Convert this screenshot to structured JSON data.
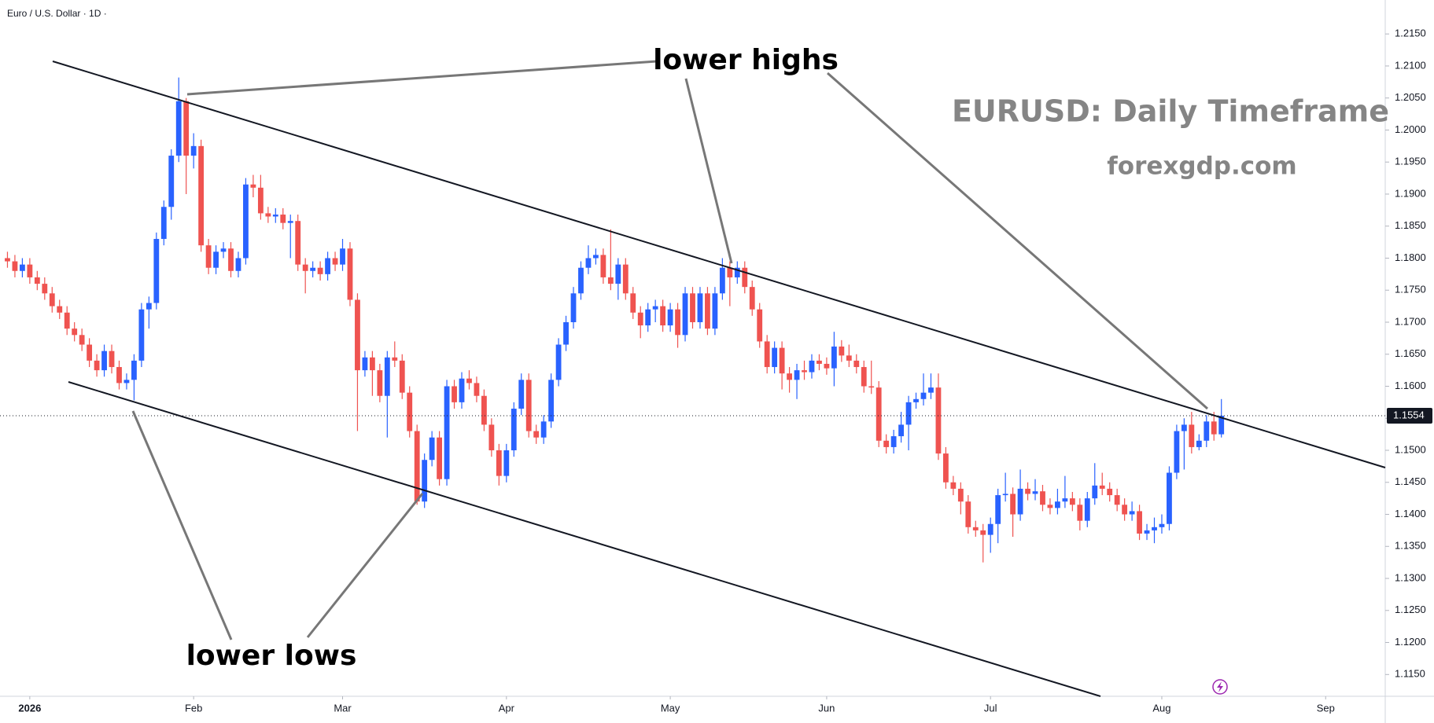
{
  "chart_data": {
    "type": "candlestick",
    "title": "Euro / U.S. Dollar · 1D ·",
    "annotations": {
      "highs": "lower highs",
      "lows": "lower lows",
      "heading": "EURUSD: Daily Timeframe",
      "site": "forexgdp.com"
    },
    "up_color": "#2962ff",
    "down_color": "#ef5350",
    "open": [
      1.18,
      1.1795,
      1.178,
      1.179,
      1.177,
      1.176,
      1.1745,
      1.1725,
      1.1715,
      1.169,
      1.168,
      1.1665,
      1.164,
      1.1625,
      1.1655,
      1.163,
      1.1605,
      1.161,
      1.164,
      1.172,
      1.173,
      1.183,
      1.188,
      1.196,
      1.2045,
      1.196,
      1.1975,
      1.182,
      1.1785,
      1.181,
      1.1815,
      1.178,
      1.18,
      1.1915,
      1.191,
      1.187,
      1.1865,
      1.1868,
      1.1855,
      1.1858,
      1.179,
      1.178,
      1.1785,
      1.1775,
      1.18,
      1.179,
      1.1815,
      1.1735,
      1.1625,
      1.1645,
      1.1625,
      1.1585,
      1.1645,
      1.164,
      1.159,
      1.153,
      1.142,
      1.1485,
      1.152,
      1.1455,
      1.16,
      1.1575,
      1.1612,
      1.1605,
      1.1585,
      1.154,
      1.15,
      1.146,
      1.15,
      1.1565,
      1.161,
      1.153,
      1.152,
      1.1545,
      1.161,
      1.1665,
      1.17,
      1.1745,
      1.1785,
      1.18,
      1.1805,
      1.177,
      1.176,
      1.179,
      1.1745,
      1.1715,
      1.1695,
      1.172,
      1.1725,
      1.1695,
      1.172,
      1.168,
      1.1745,
      1.17,
      1.1745,
      1.169,
      1.1745,
      1.1785,
      1.177,
      1.1785,
      1.1755,
      1.172,
      1.167,
      1.163,
      1.166,
      1.162,
      1.161,
      1.1625,
      1.1622,
      1.164,
      1.1635,
      1.1628,
      1.1662,
      1.1648,
      1.164,
      1.163,
      1.16,
      1.1598,
      1.1515,
      1.1505,
      1.1522,
      1.154,
      1.1575,
      1.158,
      1.159,
      1.1598,
      1.1495,
      1.145,
      1.144,
      1.142,
      1.138,
      1.1375,
      1.1368,
      1.1385,
      1.143,
      1.1432,
      1.14,
      1.144,
      1.1432,
      1.1436,
      1.1415,
      1.141,
      1.142,
      1.1425,
      1.1415,
      1.139,
      1.1425,
      1.1445,
      1.144,
      1.143,
      1.1415,
      1.14,
      1.1405,
      1.137,
      1.1375,
      1.138,
      1.1385,
      1.1465,
      1.153,
      1.154,
      1.1505,
      1.1515,
      1.1545,
      1.1525
    ],
    "high": [
      1.181,
      1.1805,
      1.18,
      1.18,
      1.178,
      1.177,
      1.1755,
      1.1735,
      1.1725,
      1.17,
      1.169,
      1.1675,
      1.165,
      1.1665,
      1.1665,
      1.164,
      1.162,
      1.165,
      1.173,
      1.174,
      1.184,
      1.189,
      1.197,
      1.2082,
      1.205,
      1.1995,
      1.1985,
      1.183,
      1.182,
      1.1825,
      1.1825,
      1.181,
      1.1925,
      1.193,
      1.193,
      1.188,
      1.1878,
      1.1878,
      1.1868,
      1.1868,
      1.18,
      1.1795,
      1.1795,
      1.181,
      1.181,
      1.183,
      1.1825,
      1.1745,
      1.1655,
      1.1655,
      1.1635,
      1.1655,
      1.167,
      1.165,
      1.16,
      1.154,
      1.1495,
      1.153,
      1.153,
      1.161,
      1.161,
      1.1622,
      1.1625,
      1.1615,
      1.1595,
      1.155,
      1.151,
      1.151,
      1.1575,
      1.162,
      1.162,
      1.154,
      1.1555,
      1.162,
      1.1675,
      1.171,
      1.1755,
      1.1795,
      1.182,
      1.1815,
      1.1815,
      1.1845,
      1.18,
      1.18,
      1.1755,
      1.1725,
      1.173,
      1.1735,
      1.1735,
      1.173,
      1.173,
      1.1755,
      1.1755,
      1.1755,
      1.1755,
      1.1755,
      1.18,
      1.1795,
      1.1795,
      1.1795,
      1.1765,
      1.173,
      1.168,
      1.167,
      1.167,
      1.163,
      1.1635,
      1.164,
      1.165,
      1.165,
      1.1645,
      1.1685,
      1.1672,
      1.1665,
      1.165,
      1.164,
      1.164,
      1.1608,
      1.1525,
      1.1532,
      1.156,
      1.1585,
      1.159,
      1.162,
      1.162,
      1.162,
      1.1505,
      1.146,
      1.145,
      1.143,
      1.139,
      1.1385,
      1.1395,
      1.144,
      1.1465,
      1.1442,
      1.147,
      1.145,
      1.1455,
      1.1446,
      1.1425,
      1.144,
      1.146,
      1.1435,
      1.1425,
      1.1435,
      1.148,
      1.1465,
      1.145,
      1.144,
      1.1425,
      1.142,
      1.1415,
      1.1385,
      1.1395,
      1.14,
      1.1475,
      1.154,
      1.155,
      1.156,
      1.1525,
      1.1555,
      1.156,
      1.158
    ],
    "low": [
      1.1785,
      1.177,
      1.177,
      1.176,
      1.175,
      1.1735,
      1.1715,
      1.1705,
      1.168,
      1.167,
      1.1655,
      1.163,
      1.1615,
      1.1615,
      1.162,
      1.1595,
      1.1595,
      1.1578,
      1.163,
      1.169,
      1.172,
      1.182,
      1.186,
      1.195,
      1.19,
      1.194,
      1.181,
      1.1775,
      1.1775,
      1.18,
      1.177,
      1.177,
      1.179,
      1.1895,
      1.186,
      1.1855,
      1.1855,
      1.1845,
      1.18,
      1.178,
      1.1745,
      1.177,
      1.1765,
      1.1765,
      1.178,
      1.178,
      1.1725,
      1.153,
      1.1615,
      1.1585,
      1.1575,
      1.152,
      1.163,
      1.158,
      1.152,
      1.1415,
      1.141,
      1.1475,
      1.1445,
      1.1445,
      1.1565,
      1.1565,
      1.1595,
      1.1575,
      1.153,
      1.149,
      1.1445,
      1.145,
      1.149,
      1.1555,
      1.152,
      1.151,
      1.151,
      1.1535,
      1.16,
      1.1655,
      1.169,
      1.1735,
      1.1775,
      1.179,
      1.176,
      1.175,
      1.1735,
      1.1735,
      1.1705,
      1.1675,
      1.1685,
      1.17,
      1.1685,
      1.1685,
      1.166,
      1.167,
      1.169,
      1.169,
      1.168,
      1.168,
      1.1735,
      1.1725,
      1.176,
      1.1745,
      1.171,
      1.166,
      1.162,
      1.162,
      1.1595,
      1.159,
      1.158,
      1.161,
      1.1612,
      1.1625,
      1.1618,
      1.16,
      1.1638,
      1.163,
      1.162,
      1.159,
      1.1588,
      1.1505,
      1.1495,
      1.1495,
      1.1512,
      1.15,
      1.1565,
      1.157,
      1.158,
      1.1485,
      1.144,
      1.143,
      1.14,
      1.137,
      1.1365,
      1.1325,
      1.134,
      1.1355,
      1.142,
      1.1365,
      1.139,
      1.1422,
      1.1422,
      1.1405,
      1.14,
      1.14,
      1.141,
      1.1405,
      1.1375,
      1.138,
      1.1415,
      1.143,
      1.142,
      1.1405,
      1.139,
      1.139,
      1.136,
      1.136,
      1.1355,
      1.137,
      1.1375,
      1.1455,
      1.147,
      1.1495,
      1.15,
      1.1505,
      1.1515,
      1.152
    ],
    "close": [
      1.1795,
      1.178,
      1.179,
      1.177,
      1.176,
      1.1745,
      1.1725,
      1.1715,
      1.169,
      1.168,
      1.1665,
      1.164,
      1.1625,
      1.1655,
      1.163,
      1.1605,
      1.161,
      1.164,
      1.172,
      1.173,
      1.183,
      1.188,
      1.196,
      1.2045,
      1.196,
      1.1975,
      1.182,
      1.1785,
      1.181,
      1.1815,
      1.178,
      1.18,
      1.1915,
      1.191,
      1.187,
      1.1865,
      1.1868,
      1.1855,
      1.1858,
      1.179,
      1.178,
      1.1785,
      1.1775,
      1.18,
      1.179,
      1.1815,
      1.1735,
      1.1625,
      1.1645,
      1.1625,
      1.1585,
      1.1645,
      1.164,
      1.159,
      1.153,
      1.142,
      1.1485,
      1.152,
      1.1455,
      1.16,
      1.1575,
      1.1612,
      1.1605,
      1.1585,
      1.154,
      1.15,
      1.146,
      1.15,
      1.1565,
      1.161,
      1.153,
      1.152,
      1.1545,
      1.161,
      1.1665,
      1.17,
      1.1745,
      1.1785,
      1.18,
      1.1805,
      1.177,
      1.176,
      1.179,
      1.1745,
      1.1715,
      1.1695,
      1.172,
      1.1725,
      1.1695,
      1.172,
      1.168,
      1.1745,
      1.17,
      1.1745,
      1.169,
      1.1745,
      1.1785,
      1.177,
      1.1785,
      1.1755,
      1.172,
      1.167,
      1.163,
      1.166,
      1.162,
      1.161,
      1.1625,
      1.1622,
      1.164,
      1.1635,
      1.1628,
      1.1662,
      1.1648,
      1.164,
      1.163,
      1.16,
      1.1598,
      1.1515,
      1.1505,
      1.1522,
      1.154,
      1.1575,
      1.158,
      1.159,
      1.1598,
      1.1495,
      1.145,
      1.144,
      1.142,
      1.138,
      1.1375,
      1.1368,
      1.1385,
      1.143,
      1.1432,
      1.14,
      1.144,
      1.1432,
      1.1436,
      1.1415,
      1.141,
      1.142,
      1.1425,
      1.1415,
      1.139,
      1.1425,
      1.1445,
      1.144,
      1.143,
      1.1415,
      1.14,
      1.1405,
      1.137,
      1.1375,
      1.138,
      1.1385,
      1.1465,
      1.153,
      1.154,
      1.1505,
      1.1515,
      1.1545,
      1.1525,
      1.1554
    ],
    "xlim": [
      -1,
      185
    ],
    "xticks": [
      {
        "value": 3,
        "label": "2026"
      },
      {
        "value": 25,
        "label": "Feb"
      },
      {
        "value": 45,
        "label": "Mar"
      },
      {
        "value": 67,
        "label": "Apr"
      },
      {
        "value": 89,
        "label": "May"
      },
      {
        "value": 110,
        "label": "Jun"
      },
      {
        "value": 132,
        "label": "Jul"
      },
      {
        "value": 155,
        "label": "Aug"
      },
      {
        "value": 177,
        "label": "Sep"
      }
    ],
    "ylim": [
      1.1116,
      1.2203
    ],
    "yticks": [
      {
        "value": 1.115,
        "label": "1.1150"
      },
      {
        "value": 1.12,
        "label": "1.1200"
      },
      {
        "value": 1.125,
        "label": "1.1250"
      },
      {
        "value": 1.13,
        "label": "1.1300"
      },
      {
        "value": 1.135,
        "label": "1.1350"
      },
      {
        "value": 1.14,
        "label": "1.1400"
      },
      {
        "value": 1.145,
        "label": "1.1450"
      },
      {
        "value": 1.15,
        "label": "1.1500"
      },
      {
        "value": 1.155,
        "label": "1.1550"
      },
      {
        "value": 1.16,
        "label": "1.1600"
      },
      {
        "value": 1.165,
        "label": "1.1650"
      },
      {
        "value": 1.17,
        "label": "1.1700"
      },
      {
        "value": 1.175,
        "label": "1.1750"
      },
      {
        "value": 1.18,
        "label": "1.1800"
      },
      {
        "value": 1.185,
        "label": "1.1850"
      },
      {
        "value": 1.19,
        "label": "1.1900"
      },
      {
        "value": 1.195,
        "label": "1.1950"
      },
      {
        "value": 1.2,
        "label": "1.2000"
      },
      {
        "value": 1.205,
        "label": "1.2050"
      },
      {
        "value": 1.21,
        "label": "1.2100"
      },
      {
        "value": 1.215,
        "label": "1.2150"
      }
    ],
    "grid": false
  }
}
